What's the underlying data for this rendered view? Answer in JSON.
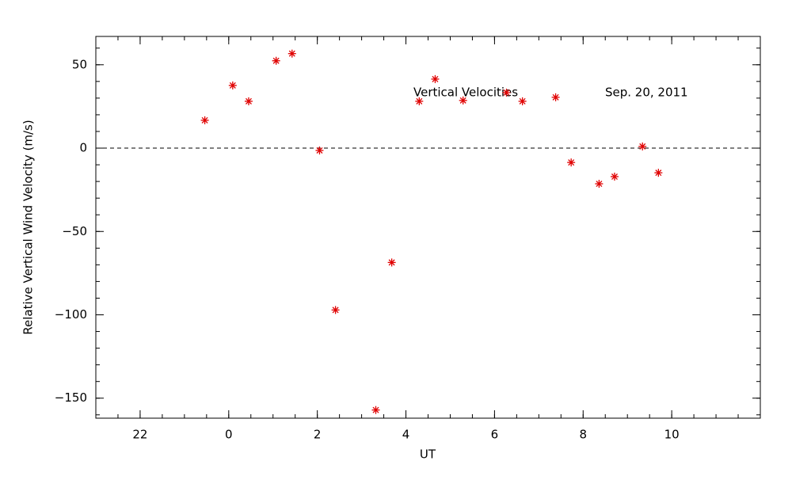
{
  "chart_data": {
    "type": "scatter",
    "xlabel": "UT",
    "ylabel": "Relative Vertical Wind Velocity (m/s)",
    "annotations": [
      "Vertical Velocities",
      "Sep. 20, 2011"
    ],
    "series": [
      {
        "color": "#e00000",
        "x": [
          -0.54,
          0.09,
          0.45,
          1.07,
          1.43,
          2.05,
          2.41,
          3.32,
          3.68,
          4.3,
          4.66,
          5.29,
          6.27,
          6.63,
          7.38,
          7.73,
          8.36,
          8.71,
          9.34,
          9.7
        ],
        "values": [
          16.7,
          37.6,
          28.1,
          52.4,
          56.7,
          -1.4,
          -97.1,
          -157.1,
          -68.6,
          28.1,
          41.4,
          28.6,
          33.3,
          28.1,
          30.5,
          -8.6,
          -21.4,
          -17.1,
          1.0,
          -14.8
        ]
      }
    ],
    "xlim": [
      -3,
      12
    ],
    "xticks": [
      {
        "value": -2,
        "label": "22"
      },
      0,
      2,
      4,
      6,
      8,
      10
    ],
    "ylim": [
      -162,
      67
    ],
    "yticks": [
      {
        "value": -150,
        "label": "−150"
      },
      {
        "value": -100,
        "label": "−100"
      },
      {
        "value": -50,
        "label": "−50"
      },
      0,
      50
    ],
    "minor_xtick_step": 0.5,
    "minor_ytick_step": 10,
    "reference_line": 0
  }
}
